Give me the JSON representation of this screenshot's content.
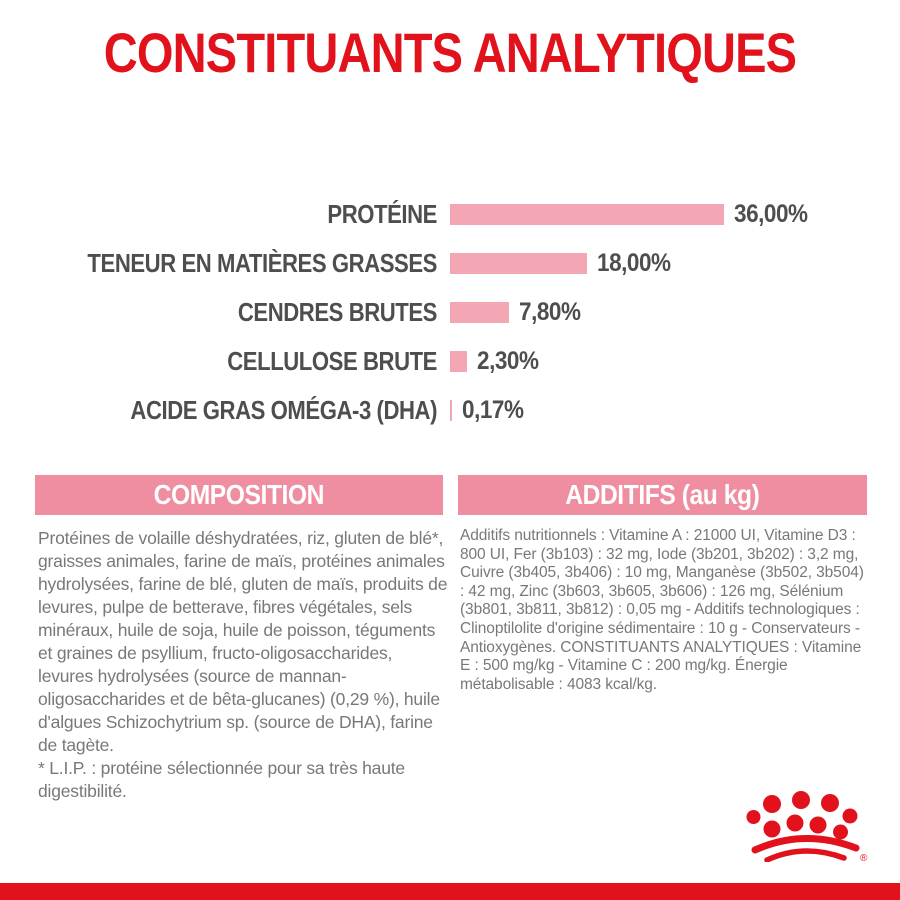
{
  "page": {
    "title": "CONSTITUANTS ANALYTIQUES",
    "colors": {
      "red": "#e2121c",
      "bar_pink": "#f3a7b5",
      "header_pink": "#f08ea1",
      "label_gray": "#4d4e50",
      "body_gray": "#77787b"
    }
  },
  "chart_data": {
    "type": "bar",
    "orientation": "horizontal",
    "title": "CONSTITUANTS ANALYTIQUES",
    "unit": "%",
    "xlim": [
      0,
      36
    ],
    "grid": false,
    "legend": false,
    "rows": [
      {
        "label": "PROTÉINE",
        "value": 36.0,
        "display": "36,00%"
      },
      {
        "label": "TENEUR EN MATIÈRES GRASSES",
        "value": 18.0,
        "display": "18,00%"
      },
      {
        "label": "CENDRES BRUTES",
        "value": 7.8,
        "display": "7,80%"
      },
      {
        "label": "CELLULOSE BRUTE",
        "value": 2.3,
        "display": "2,30%"
      },
      {
        "label": "ACIDE GRAS OMÉGA-3 (DHA)",
        "value": 0.17,
        "display": "0,17%"
      }
    ]
  },
  "composition": {
    "header": "COMPOSITION",
    "body": "Protéines de volaille déshydratées, riz, gluten de blé*, graisses animales, farine de maïs, protéines animales hydrolysées, farine de blé, gluten de maïs, produits de levures, pulpe de betterave, fibres végétales, sels minéraux, huile de soja, huile de poisson, téguments et graines de psyllium, fructo-oligosaccharides, levures hydrolysées (source de mannan-oligosaccharides et de bêta-glucanes) (0,29 %), huile d'algues Schizochytrium sp. (source de DHA), farine de tagète.",
    "footnote": "* L.I.P. : protéine sélectionnée pour sa très haute digestibilité."
  },
  "additifs": {
    "header": "ADDITIFS (au kg)",
    "body": "Additifs nutritionnels : Vitamine A : 21000 UI, Vitamine D3 : 800 UI, Fer (3b103) : 32 mg, Iode (3b201, 3b202) : 3,2 mg, Cuivre (3b405, 3b406) : 10 mg, Manganèse (3b502, 3b504) : 42 mg, Zinc (3b603, 3b605, 3b606) : 126 mg, Sélénium (3b801, 3b811, 3b812) : 0,05 mg - Additifs technologiques : Clinoptilolite d'origine sédimentaire : 10 g - Conservateurs - Antioxygènes. CONSTITUANTS ANALYTIQUES : Vitamine E : 500 mg/kg - Vitamine C : 200 mg/kg. Énergie métabolisable : 4083 kcal/kg."
  },
  "logo": {
    "name": "royal-canin-crown",
    "registered_mark": "®"
  }
}
